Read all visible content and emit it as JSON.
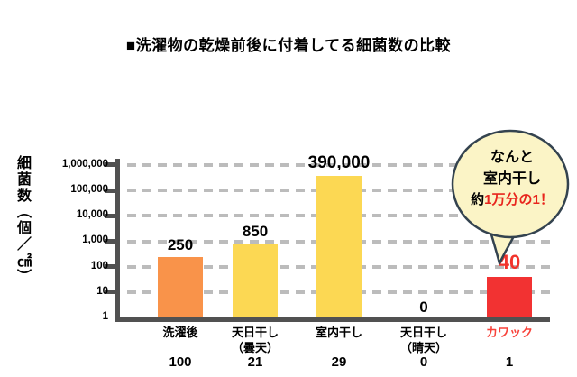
{
  "title": "■洗濯物の乾燥前後に付着してる細菌数の比較",
  "y_axis": {
    "unit_label": "細菌数（個／㎠）",
    "ticks": [
      "1,000,000",
      "100,000",
      "10,000",
      "1,000",
      "100",
      "10",
      "1"
    ]
  },
  "chart_data": {
    "type": "bar",
    "scale": "log10",
    "title": "■洗濯物の乾燥前後に付着してる細菌数の比較",
    "ylabel": "細菌数（個／㎠）",
    "ylim": [
      1,
      1000000
    ],
    "grid": true,
    "categories": [
      "洗濯後",
      "天日干し（曇天）",
      "室内干し",
      "天日干し（晴天）",
      "カワック"
    ],
    "category_lines": [
      "洗濯後",
      "天日干し\n（曇天）",
      "室内干し",
      "天日干し\n（晴天）",
      "カワック"
    ],
    "values": [
      250,
      850,
      390000,
      0,
      40
    ],
    "value_labels": [
      "250",
      "850",
      "390,000",
      "0",
      "40"
    ],
    "relative_row": [
      "100",
      "21",
      "29",
      "0",
      "1"
    ],
    "y_ticks": [
      "1,000,000",
      "100,000",
      "10,000",
      "1,000",
      "100",
      "10",
      "1"
    ],
    "bar_colors": [
      "#F9934A",
      "#FCD853",
      "#FCD853",
      "#FCD853",
      "#F23232"
    ],
    "value_label_colors": [
      "#000000",
      "#000000",
      "#000000",
      "#000000",
      "#F2332B"
    ],
    "value_label_sizes": [
      17,
      17,
      19,
      17,
      22
    ],
    "category_colors": [
      "#000000",
      "#000000",
      "#000000",
      "#000000",
      "#F8423A"
    ]
  },
  "bubble": {
    "line1": "なんと",
    "line2": "室内干し",
    "line3_prefix": "約",
    "line3_highlight": "1万分の1！"
  },
  "colors": {
    "axis": "#515151",
    "gridline": "#BCBCBC",
    "bubble_fill": "#FBF4C6",
    "bubble_border": "#34434F",
    "bubble_highlight": "#E8251D"
  }
}
